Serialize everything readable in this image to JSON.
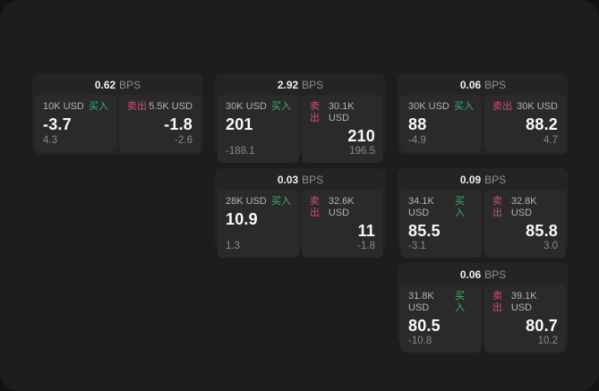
{
  "labels": {
    "bps": "BPS",
    "buy": "买入",
    "sell": "卖出"
  },
  "colors": {
    "buy_green": "#39b36e",
    "sell_red": "#d44d6e",
    "outer_background": "#131313",
    "panel_background": "#1d1d1d",
    "card_background": "#242425",
    "tile_background": "#2a2a2b"
  },
  "cards": [
    {
      "spread": "0.62",
      "buy_amount": "10K USD",
      "buy_price": "-3.7",
      "buy_change": "4.3",
      "sell_amount": "5.5K USD",
      "sell_price": "-1.8",
      "sell_change": "-2.6"
    },
    {
      "spread": "2.92",
      "buy_amount": "30K USD",
      "buy_price": "201",
      "buy_change": "-188.1",
      "sell_amount": "30.1K USD",
      "sell_price": "210",
      "sell_change": "196.5"
    },
    {
      "spread": "0.06",
      "buy_amount": "30K USD",
      "buy_price": "88",
      "buy_change": "-4.9",
      "sell_amount": "30K USD",
      "sell_price": "88.2",
      "sell_change": "4.7"
    },
    {
      "spread": "0.03",
      "buy_amount": "28K USD",
      "buy_price": "10.9",
      "buy_change": "1.3",
      "sell_amount": "32.6K USD",
      "sell_price": "11",
      "sell_change": "-1.8"
    },
    {
      "spread": "0.09",
      "buy_amount": "34.1K USD",
      "buy_price": "85.5",
      "buy_change": "-3.1",
      "sell_amount": "32.8K USD",
      "sell_price": "85.8",
      "sell_change": "3.0"
    },
    {
      "spread": "0.06",
      "buy_amount": "31.8K USD",
      "buy_price": "80.5",
      "buy_change": "-10.8",
      "sell_amount": "39.1K USD",
      "sell_price": "80.7",
      "sell_change": "10.2"
    }
  ]
}
